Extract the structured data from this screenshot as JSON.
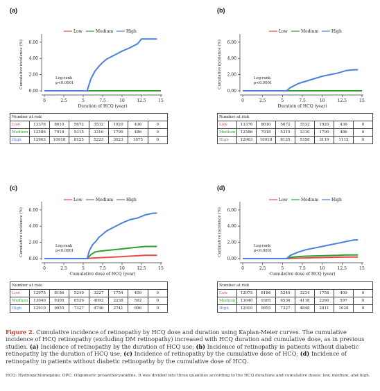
{
  "colors": {
    "low": "#e84a4a",
    "medium": "#2ca02c",
    "high": "#4a7fe0"
  },
  "legend": {
    "low": "Low",
    "medium": "Medium",
    "high": "High"
  },
  "chart_data": [
    {
      "panel": "(a)",
      "type": "line",
      "ylabel": "Cumulative incidence (%)",
      "xlabel": "Duration of HCQ (year)",
      "yticks": [
        "0.00",
        "2.00",
        "4.00",
        "6.00"
      ],
      "xticks": [
        "0",
        "2.5",
        "5",
        "7.5",
        "10",
        "12.5",
        "15"
      ],
      "xlim": [
        0,
        15
      ],
      "ylim": [
        0,
        6.5
      ],
      "annotation": [
        "Log-rank",
        "p<0.0001"
      ],
      "series": [
        {
          "name": "Low",
          "x": [
            0,
            15
          ],
          "y": [
            0,
            0
          ]
        },
        {
          "name": "Medium",
          "x": [
            0,
            15
          ],
          "y": [
            0,
            0
          ]
        },
        {
          "name": "High",
          "x": [
            0,
            5.5,
            5.7,
            6,
            6.5,
            7,
            7.5,
            8,
            9,
            10,
            11,
            12,
            12.5,
            13.5,
            14.5
          ],
          "y": [
            0,
            0,
            0.6,
            1.5,
            2.4,
            3.0,
            3.5,
            3.9,
            4.4,
            4.9,
            5.3,
            5.8,
            6.4,
            6.4,
            6.4
          ]
        }
      ],
      "risk_table": {
        "header": "Number at risk",
        "rows": [
          {
            "label": "Low",
            "values": [
              "13376",
              "8610",
              "5672",
              "3532",
              "1920",
              "436",
              "0"
            ]
          },
          {
            "label": "Medium",
            "values": [
              "12586",
              "7918",
              "5315",
              "3310",
              "1790",
              "486",
              "0"
            ]
          },
          {
            "label": "High",
            "values": [
              "12963",
              "10918",
              "8125",
              "5223",
              "3023",
              "1075",
              "0"
            ]
          }
        ]
      }
    },
    {
      "panel": "(b)",
      "type": "line",
      "ylabel": "Cumulative incidence (%)",
      "xlabel": "Duration of HCQ (year)",
      "yticks": [
        "0.00",
        "2.00",
        "4.00",
        "6.00"
      ],
      "xticks": [
        "0",
        "2.5",
        "5",
        "7.5",
        "10",
        "12.5",
        "15"
      ],
      "xlim": [
        0,
        15
      ],
      "ylim": [
        0,
        6.5
      ],
      "annotation": [
        "Log-rank",
        "p<0.0001"
      ],
      "series": [
        {
          "name": "Low",
          "x": [
            0,
            15
          ],
          "y": [
            0,
            0
          ]
        },
        {
          "name": "Medium",
          "x": [
            0,
            15
          ],
          "y": [
            0,
            0
          ]
        },
        {
          "name": "High",
          "x": [
            0,
            5.5,
            6,
            7,
            8,
            9,
            10,
            11,
            12,
            13,
            14,
            14.5
          ],
          "y": [
            0,
            0,
            0.4,
            0.9,
            1.2,
            1.5,
            1.8,
            2.0,
            2.2,
            2.5,
            2.6,
            2.6
          ]
        }
      ],
      "risk_table": {
        "header": "Number at risk",
        "rows": [
          {
            "label": "Low",
            "values": [
              "13376",
              "8610",
              "5672",
              "3532",
              "1920",
              "436",
              "0"
            ]
          },
          {
            "label": "Medium",
            "values": [
              "12586",
              "7918",
              "5315",
              "3310",
              "1790",
              "486",
              "0"
            ]
          },
          {
            "label": "High",
            "values": [
              "12963",
              "10918",
              "8125",
              "5358",
              "3119",
              "1112",
              "0"
            ]
          }
        ]
      }
    },
    {
      "panel": "(c)",
      "type": "line",
      "ylabel": "Cumulative incidence (%)",
      "xlabel": "Cumulative dose of HCQ (year)",
      "yticks": [
        "0.00",
        "2.00",
        "4.00",
        "6.00"
      ],
      "xticks": [
        "0",
        "2.5",
        "5",
        "7.5",
        "10",
        "12.5",
        "15"
      ],
      "xlim": [
        0,
        15
      ],
      "ylim": [
        0,
        6.5
      ],
      "annotation": [
        "Log-rank",
        "p<0.0001"
      ],
      "series": [
        {
          "name": "Low",
          "x": [
            0,
            5.5,
            6,
            7,
            8,
            9,
            10,
            11,
            12,
            13,
            14,
            14.5
          ],
          "y": [
            0,
            0,
            0.05,
            0.1,
            0.15,
            0.2,
            0.25,
            0.3,
            0.35,
            0.4,
            0.4,
            0.4
          ]
        },
        {
          "name": "Medium",
          "x": [
            0,
            5.5,
            6,
            6.5,
            7,
            8,
            9,
            10,
            11,
            12,
            13,
            14,
            14.5
          ],
          "y": [
            0,
            0,
            0.5,
            0.8,
            0.9,
            1.0,
            1.1,
            1.2,
            1.3,
            1.4,
            1.5,
            1.5,
            1.5
          ]
        },
        {
          "name": "High",
          "x": [
            0,
            5.5,
            5.8,
            6.2,
            6.7,
            7,
            7.5,
            8,
            9,
            10,
            11,
            12,
            13,
            14,
            14.5
          ],
          "y": [
            0,
            0,
            1.0,
            1.7,
            2.2,
            2.6,
            3.0,
            3.4,
            3.9,
            4.4,
            4.8,
            5.0,
            5.4,
            5.6,
            5.6
          ]
        }
      ],
      "risk_table": {
        "header": "Number at risk",
        "rows": [
          {
            "label": "Low",
            "values": [
              "12975",
              "8186",
              "5249",
              "3227",
              "1754",
              "409",
              "0"
            ]
          },
          {
            "label": "Medium",
            "values": [
              "13040",
              "9305",
              "6536",
              "4092",
              "2238",
              "592",
              "0"
            ]
          },
          {
            "label": "High",
            "values": [
              "12910",
              "9955",
              "7327",
              "4746",
              "2741",
              "996",
              "0"
            ]
          }
        ]
      }
    },
    {
      "panel": "(d)",
      "type": "line",
      "ylabel": "Cumulative incidence (%)",
      "xlabel": "Cumulative dose of HCQ (year)",
      "yticks": [
        "0.00",
        "2.00",
        "4.00",
        "6.00"
      ],
      "xticks": [
        "0",
        "2.5",
        "5",
        "7.5",
        "10",
        "12.5",
        "15"
      ],
      "xlim": [
        0,
        15
      ],
      "ylim": [
        0,
        6.5
      ],
      "annotation": [
        "Log-rank",
        "p<0.0001"
      ],
      "series": [
        {
          "name": "Low",
          "x": [
            0,
            5.5,
            7,
            9,
            11,
            13,
            14.5
          ],
          "y": [
            0,
            0,
            0.05,
            0.1,
            0.15,
            0.2,
            0.2
          ]
        },
        {
          "name": "Medium",
          "x": [
            0,
            5.5,
            6,
            7,
            8,
            10,
            12,
            13,
            14.5
          ],
          "y": [
            0,
            0,
            0.15,
            0.25,
            0.3,
            0.35,
            0.4,
            0.45,
            0.45
          ]
        },
        {
          "name": "High",
          "x": [
            0,
            5.5,
            6,
            7,
            8,
            9,
            10,
            11,
            12,
            13,
            14,
            14.5
          ],
          "y": [
            0,
            0,
            0.4,
            0.8,
            1.1,
            1.3,
            1.5,
            1.7,
            1.9,
            2.1,
            2.3,
            2.3
          ]
        }
      ],
      "risk_table": {
        "header": "Number at risk",
        "rows": [
          {
            "label": "Low",
            "values": [
              "12975",
              "8186",
              "5249",
              "3234",
              "1758",
              "409",
              "0"
            ]
          },
          {
            "label": "Medium",
            "values": [
              "13040",
              "9305",
              "6536",
              "4118",
              "2260",
              "597",
              "0"
            ]
          },
          {
            "label": "High",
            "values": [
              "12910",
              "9955",
              "7327",
              "4848",
              "2811",
              "1028",
              "0"
            ]
          }
        ]
      }
    }
  ],
  "caption": {
    "fig_label": "Figure 2.",
    "text1": " Cumulative incidence of retinopathy by HCQ dose and duration using Kaplan-Meier curves. The cumulative incidence of HCQ retinopathy (excluding DM retinopathy) increased with HCQ duration and cumulative dose, as in previous studies. ",
    "a_label": "(a)",
    "a_text": " Incidence of retinopathy by the duration of HCQ use; ",
    "b_label": "(b)",
    "b_text": " Incidence of retinopathy in patients without diabetic retinopathy by the duration of HCQ use; ",
    "c_label": "(c)",
    "c_text": " Incidence of retinopathy by the cumulative dose of HCQ; ",
    "d_label": "(d)",
    "d_text": " Incidence of retinopathy in patients without diabetic retinopathy by the cumulative dose of HCQ."
  },
  "footnote": "HCQ: Hydroxychloroquine; OPC: Oligomeric proanthocyanidins. It was divided into three quantiles according to the HCQ durations and cumulative doses: low, medium, and high."
}
